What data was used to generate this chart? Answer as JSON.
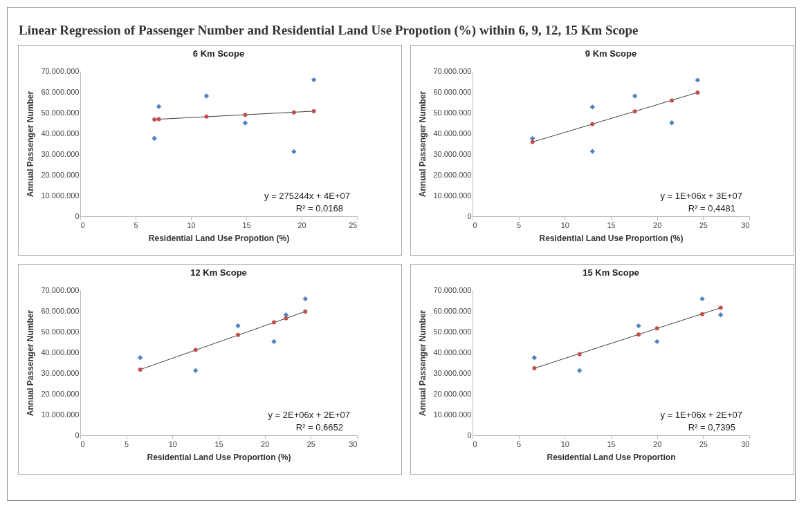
{
  "chart_data": [
    {
      "type": "other",
      "title": "Linear Regression of Passenger Number and Residential Land Use Propotion (%) within 6, 9, 12, 15 Km Scope"
    },
    {
      "type": "scatter",
      "title": "6 Km Scope",
      "xlabel": "Residential Land Use Propotion (%)",
      "ylabel": "Annual Passenger Number",
      "xlim": [
        0,
        25
      ],
      "xticks": [
        0,
        5,
        10,
        15,
        20,
        25
      ],
      "ylim": [
        0,
        70000000
      ],
      "yticks": [
        {
          "value": 0,
          "label": "0"
        },
        {
          "value": 10000000,
          "label": "10.000.000"
        },
        {
          "value": 20000000,
          "label": "20.000.000"
        },
        {
          "value": 30000000,
          "label": "30.000.000"
        },
        {
          "value": 40000000,
          "label": "40.000.000"
        },
        {
          "value": 50000000,
          "label": "50.000.000"
        },
        {
          "value": 60000000,
          "label": "60.000.000"
        },
        {
          "value": 70000000,
          "label": "70.000.000"
        }
      ],
      "grid": false,
      "annotations": [
        "y = 275244x + 4E+07",
        "R² = 0,0168"
      ],
      "series": [
        {
          "type": "scatter",
          "marker": "diamond",
          "color": "#4f81bd",
          "x": [
            6.7,
            7.1,
            11.4,
            14.9,
            19.3,
            21.1
          ],
          "values": [
            37600000,
            52900000,
            58000000,
            45000000,
            31200000,
            65800000
          ]
        },
        {
          "type": "scatter",
          "marker": "circle",
          "color": "#c0504d",
          "x": [
            6.7,
            7.1,
            11.4,
            14.9,
            19.3,
            21.1
          ],
          "values": [
            46700000,
            46800000,
            48100000,
            48900000,
            50100000,
            50700000
          ]
        },
        {
          "type": "line",
          "marker": "none",
          "color": "#404040",
          "x": [
            6.7,
            21.1
          ],
          "values": [
            46700000,
            50700000
          ]
        }
      ]
    },
    {
      "type": "scatter",
      "title": "9 Km Scope",
      "xlabel": "Residential Land Use Proportion (%)",
      "ylabel": "Annual Passenger Number",
      "xlim": [
        0,
        30
      ],
      "xticks": [
        0,
        5,
        10,
        15,
        20,
        25,
        30
      ],
      "ylim": [
        0,
        70000000
      ],
      "yticks": [
        {
          "value": 0,
          "label": "0"
        },
        {
          "value": 10000000,
          "label": "10.000.000"
        },
        {
          "value": 20000000,
          "label": "20.000.000"
        },
        {
          "value": 30000000,
          "label": "30.000.000"
        },
        {
          "value": 40000000,
          "label": "40.000.000"
        },
        {
          "value": 50000000,
          "label": "50.000.000"
        },
        {
          "value": 60000000,
          "label": "60.000.000"
        },
        {
          "value": 70000000,
          "label": "70.000.000"
        }
      ],
      "grid": false,
      "annotations": [
        "y = 1E+06x + 3E+07",
        "R² = 0,4481"
      ],
      "series": [
        {
          "type": "scatter",
          "marker": "diamond",
          "color": "#4f81bd",
          "x": [
            6.5,
            13.0,
            17.6,
            13.0,
            21.6,
            24.4
          ],
          "values": [
            37500000,
            52700000,
            58000000,
            31300000,
            45100000,
            65700000
          ]
        },
        {
          "type": "scatter",
          "marker": "circle",
          "color": "#c0504d",
          "x": [
            6.5,
            13.0,
            17.6,
            21.6,
            24.4
          ],
          "values": [
            35800000,
            44400000,
            50600000,
            55800000,
            59700000
          ]
        },
        {
          "type": "line",
          "marker": "none",
          "color": "#404040",
          "x": [
            6.5,
            24.4
          ],
          "values": [
            35800000,
            59700000
          ]
        }
      ]
    },
    {
      "type": "scatter",
      "title": "12 Km Scope",
      "xlabel": "Residential Land Use Proportion (%)",
      "ylabel": "Annual Passenger Number",
      "xlim": [
        0,
        30
      ],
      "xticks": [
        0,
        5,
        10,
        15,
        20,
        25,
        30
      ],
      "ylim": [
        0,
        70000000
      ],
      "yticks": [
        {
          "value": 0,
          "label": "0"
        },
        {
          "value": 10000000,
          "label": "10.000.000"
        },
        {
          "value": 20000000,
          "label": "20.000.000"
        },
        {
          "value": 30000000,
          "label": "30.000.000"
        },
        {
          "value": 40000000,
          "label": "40.000.000"
        },
        {
          "value": 50000000,
          "label": "50.000.000"
        },
        {
          "value": 60000000,
          "label": "60.000.000"
        },
        {
          "value": 70000000,
          "label": "70.000.000"
        }
      ],
      "grid": false,
      "annotations": [
        "y = 2E+06x + 2E+07",
        "R² = 0,6652"
      ],
      "series": [
        {
          "type": "scatter",
          "marker": "diamond",
          "color": "#4f81bd",
          "x": [
            6.5,
            12.5,
            17.1,
            21.0,
            22.3,
            24.4
          ],
          "values": [
            37400000,
            31200000,
            52800000,
            45200000,
            58100000,
            65800000
          ]
        },
        {
          "type": "scatter",
          "marker": "circle",
          "color": "#c0504d",
          "x": [
            6.5,
            12.5,
            17.1,
            21.0,
            22.3,
            24.4
          ],
          "values": [
            31700000,
            41200000,
            48400000,
            54500000,
            56400000,
            59700000
          ]
        },
        {
          "type": "line",
          "marker": "none",
          "color": "#404040",
          "x": [
            6.5,
            24.4
          ],
          "values": [
            31700000,
            59700000
          ]
        }
      ]
    },
    {
      "type": "scatter",
      "title": "15 Km Scope",
      "xlabel": "Residential Land Use Proportion",
      "ylabel": "Annual Passenger Number",
      "xlim": [
        0,
        30
      ],
      "xticks": [
        0,
        5,
        10,
        15,
        20,
        25,
        30
      ],
      "ylim": [
        0,
        70000000
      ],
      "yticks": [
        {
          "value": 0,
          "label": "0"
        },
        {
          "value": 10000000,
          "label": "10.000.000"
        },
        {
          "value": 20000000,
          "label": "20.000.000"
        },
        {
          "value": 30000000,
          "label": "30.000.000"
        },
        {
          "value": 40000000,
          "label": "40.000.000"
        },
        {
          "value": 50000000,
          "label": "50.000.000"
        },
        {
          "value": 60000000,
          "label": "60.000.000"
        },
        {
          "value": 70000000,
          "label": "70.000.000"
        }
      ],
      "grid": false,
      "annotations": [
        "y = 1E+06x + 2E+07",
        "R² = 0,7395"
      ],
      "series": [
        {
          "type": "scatter",
          "marker": "diamond",
          "color": "#4f81bd",
          "x": [
            6.7,
            11.6,
            18.0,
            20.0,
            24.9,
            26.9
          ],
          "values": [
            37400000,
            31200000,
            52800000,
            45200000,
            65800000,
            58100000
          ]
        },
        {
          "type": "scatter",
          "marker": "circle",
          "color": "#c0504d",
          "x": [
            6.7,
            11.6,
            18.0,
            20.0,
            24.9,
            26.9
          ],
          "values": [
            32300000,
            39100000,
            48600000,
            51600000,
            58400000,
            61500000
          ]
        },
        {
          "type": "line",
          "marker": "none",
          "color": "#404040",
          "x": [
            6.7,
            26.9
          ],
          "values": [
            32300000,
            61500000
          ]
        }
      ]
    }
  ]
}
